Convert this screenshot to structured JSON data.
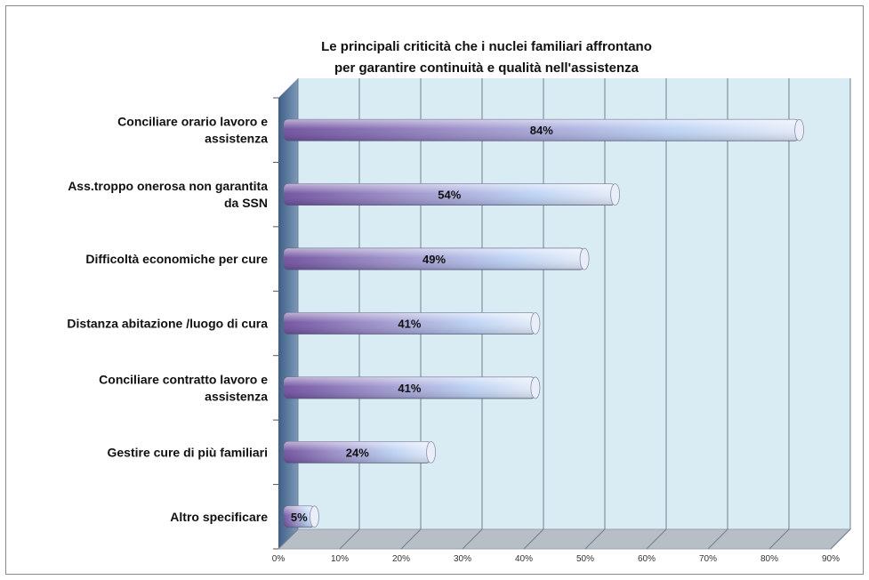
{
  "chart_data": {
    "type": "bar",
    "orientation": "horizontal",
    "title_lines": [
      "Le principali  criticità  che i nuclei familiari  affrontano",
      "per garantire continuità  e qualità  nell'assistenza"
    ],
    "categories": [
      [
        "Conciliare orario lavoro e",
        "assistenza"
      ],
      [
        "Ass.troppo onerosa non garantita",
        "da SSN"
      ],
      [
        "Difficoltà economiche per cure"
      ],
      [
        "Distanza abitazione /luogo di cura"
      ],
      [
        "Conciliare contratto lavoro e",
        "assistenza"
      ],
      [
        "Gestire cure di più familiari"
      ],
      [
        "Altro specificare"
      ]
    ],
    "values": [
      84,
      54,
      49,
      41,
      41,
      24,
      5
    ],
    "value_labels": [
      "84%",
      "54%",
      "49%",
      "41%",
      "41%",
      "24%",
      "5%"
    ],
    "xlim": [
      0,
      90
    ],
    "x_ticks": [
      "0%",
      "10%",
      "20%",
      "30%",
      "40%",
      "50%",
      "60%",
      "70%",
      "80%",
      "90%"
    ],
    "grid": true,
    "legend": "none",
    "style": "3d",
    "colors": {
      "plot_background": "#d9ecf3",
      "bar_dark": "#7a5ea8",
      "bar_light": "#bcd2f4",
      "bar_end": "#e9eef8",
      "side_wall": "#4e6f93",
      "floor": "#b7bec6",
      "gridline": "#6f7f8c"
    }
  }
}
